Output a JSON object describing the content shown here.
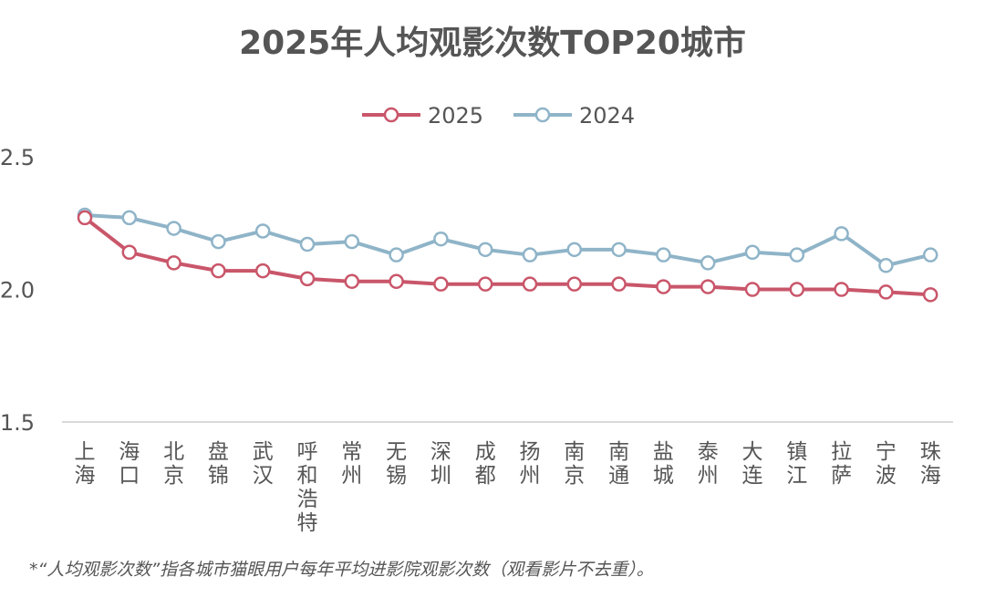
{
  "chart_data": {
    "type": "line",
    "title": "2025年人均观影次数TOP20城市",
    "categories": [
      "上海",
      "海口",
      "北京",
      "盘锦",
      "武汉",
      "呼和浩特",
      "常州",
      "无锡",
      "深圳",
      "成都",
      "扬州",
      "南京",
      "南通",
      "盐城",
      "泰州",
      "大连",
      "镇江",
      "拉萨",
      "宁波",
      "珠海"
    ],
    "series": [
      {
        "name": "2025",
        "color": "#c9566a",
        "values": [
          2.27,
          2.14,
          2.1,
          2.07,
          2.07,
          2.04,
          2.03,
          2.03,
          2.02,
          2.02,
          2.02,
          2.02,
          2.02,
          2.01,
          2.01,
          2.0,
          2.0,
          2.0,
          1.99,
          1.98
        ]
      },
      {
        "name": "2024",
        "color": "#8fb4c8",
        "values": [
          2.28,
          2.27,
          2.23,
          2.18,
          2.22,
          2.17,
          2.18,
          2.13,
          2.19,
          2.15,
          2.13,
          2.15,
          2.15,
          2.13,
          2.1,
          2.14,
          2.13,
          2.21,
          2.09,
          2.13
        ]
      }
    ],
    "y_ticks": [
      "1.5",
      "2.0",
      "2.5"
    ],
    "ylim": [
      1.5,
      2.5
    ],
    "legend_position": "top-center",
    "footnote": "*“人均观影次数”指各城市猫眼用户每年平均进影院观影次数（观看影片不去重）。"
  }
}
